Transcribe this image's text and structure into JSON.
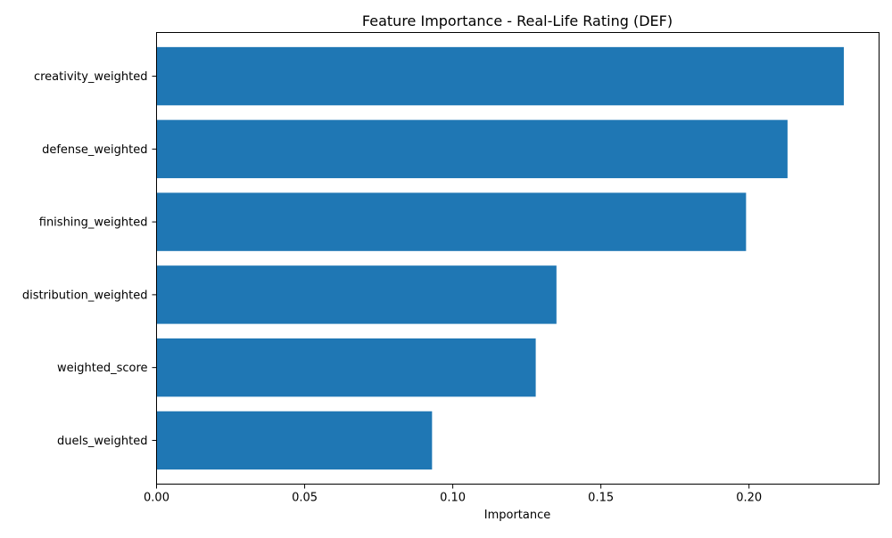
{
  "chart_data": {
    "type": "bar",
    "orientation": "horizontal",
    "title": "Feature Importance - Real-Life Rating (DEF)",
    "xlabel": "Importance",
    "ylabel": "",
    "categories": [
      "creativity_weighted",
      "defense_weighted",
      "finishing_weighted",
      "distribution_weighted",
      "weighted_score",
      "duels_weighted"
    ],
    "values": [
      0.232,
      0.213,
      0.199,
      0.135,
      0.128,
      0.093
    ],
    "xlim": [
      0,
      0.2439
    ],
    "xticks": [
      0.0,
      0.05,
      0.1,
      0.15,
      0.2
    ],
    "xtick_labels": [
      "0.00",
      "0.05",
      "0.10",
      "0.15",
      "0.20"
    ],
    "grid": false,
    "colors": {
      "bar": "#1f77b4",
      "axis": "#000000",
      "background": "#ffffff"
    }
  }
}
